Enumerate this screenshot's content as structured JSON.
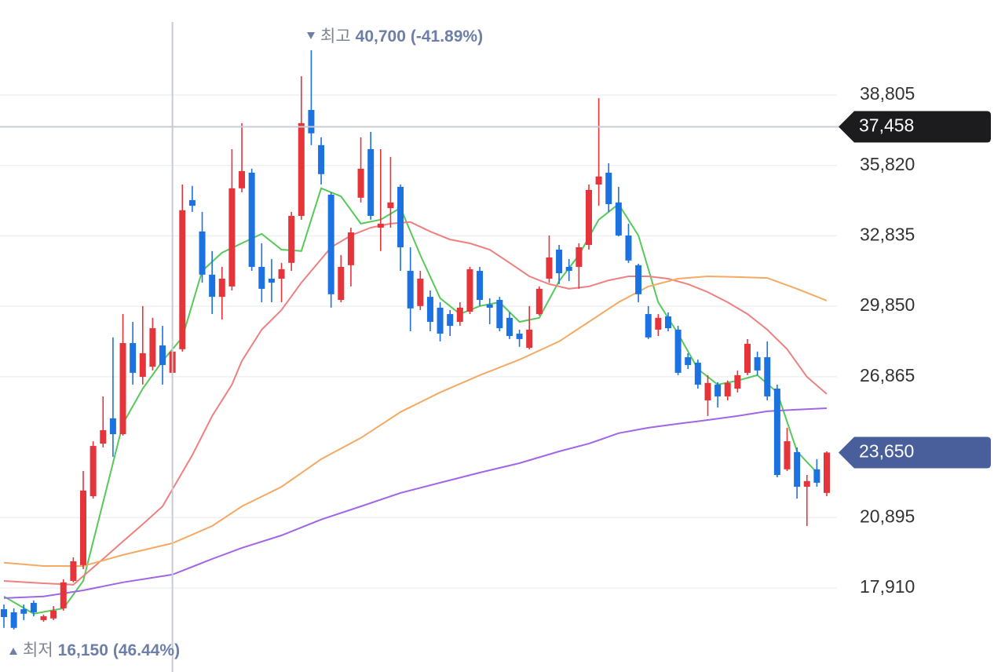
{
  "chart_data": {
    "type": "candlestick",
    "up_color": "#e5343a",
    "down_color": "#1b72e0",
    "ylim": [
      14350,
      42830
    ],
    "yticks": [
      {
        "value": 17910,
        "label": "17,910"
      },
      {
        "value": 20895,
        "label": "20,895"
      },
      {
        "value": 26865,
        "label": "26,865"
      },
      {
        "value": 29850,
        "label": "29,850"
      },
      {
        "value": 32835,
        "label": "32,835"
      },
      {
        "value": 35820,
        "label": "35,820"
      },
      {
        "value": 38805,
        "label": "38,805"
      }
    ],
    "grid": true,
    "ohlc": [
      [
        17010,
        17210,
        16220,
        16680
      ],
      [
        16880,
        17050,
        16150,
        16220
      ],
      [
        17010,
        17210,
        16550,
        16820
      ],
      [
        17280,
        17380,
        16710,
        16880
      ],
      [
        16550,
        16780,
        16480,
        16710
      ],
      [
        16620,
        17140,
        16550,
        16950
      ],
      [
        17050,
        18280,
        16950,
        18150
      ],
      [
        18210,
        19210,
        18150,
        19040
      ],
      [
        18880,
        22870,
        18710,
        22040
      ],
      [
        21800,
        24130,
        21700,
        23930
      ],
      [
        24030,
        26030,
        23870,
        24600
      ],
      [
        25100,
        28530,
        23470,
        24430
      ],
      [
        24430,
        29520,
        24370,
        28290
      ],
      [
        28290,
        29190,
        26530,
        27030
      ],
      [
        26860,
        29860,
        26530,
        27860
      ],
      [
        27290,
        29360,
        27130,
        28920
      ],
      [
        28190,
        29020,
        26530,
        27360
      ],
      [
        27030,
        28190,
        26930,
        27930
      ],
      [
        28030,
        35010,
        27930,
        33920
      ],
      [
        34350,
        34950,
        33850,
        34110
      ],
      [
        33020,
        33850,
        30850,
        31190
      ],
      [
        31190,
        32190,
        29520,
        30250
      ],
      [
        30250,
        31520,
        29290,
        31020
      ],
      [
        30690,
        36510,
        30520,
        34850
      ],
      [
        34850,
        37610,
        34680,
        35580
      ],
      [
        35510,
        35680,
        31350,
        31520
      ],
      [
        31520,
        32520,
        30020,
        30590
      ],
      [
        31020,
        31850,
        30020,
        30850
      ],
      [
        31020,
        31690,
        30020,
        31420
      ],
      [
        31690,
        33850,
        31350,
        33680
      ],
      [
        33680,
        39600,
        33520,
        37610
      ],
      [
        38170,
        40700,
        36680,
        37180
      ],
      [
        36680,
        37010,
        35010,
        35450
      ],
      [
        34580,
        34680,
        29790,
        30360
      ],
      [
        30120,
        32020,
        30020,
        31520
      ],
      [
        31590,
        33180,
        30690,
        32980
      ],
      [
        34450,
        37010,
        34250,
        35680
      ],
      [
        36510,
        37240,
        33520,
        33680
      ],
      [
        33180,
        36510,
        32190,
        33350
      ],
      [
        34010,
        36180,
        33180,
        34250
      ],
      [
        34910,
        35010,
        31350,
        32350
      ],
      [
        31350,
        32350,
        28790,
        29760
      ],
      [
        29860,
        31350,
        29690,
        31020
      ],
      [
        30250,
        30520,
        28790,
        29190
      ],
      [
        29790,
        30020,
        28360,
        28690
      ],
      [
        29520,
        29690,
        28590,
        29020
      ],
      [
        29190,
        30020,
        29020,
        29790
      ],
      [
        29620,
        31520,
        29520,
        31420
      ],
      [
        31350,
        31520,
        29860,
        30120
      ],
      [
        29920,
        30190,
        29090,
        29790
      ],
      [
        30120,
        30250,
        28790,
        28920
      ],
      [
        29360,
        29590,
        28460,
        28590
      ],
      [
        28690,
        28860,
        28130,
        28460
      ],
      [
        28090,
        29860,
        28030,
        28860
      ],
      [
        29520,
        30690,
        29460,
        30590
      ],
      [
        31020,
        32850,
        30850,
        31920
      ],
      [
        32250,
        32450,
        30790,
        31250
      ],
      [
        31520,
        31850,
        30920,
        31350
      ],
      [
        31520,
        32520,
        30590,
        32350
      ],
      [
        32450,
        35010,
        32250,
        34780
      ],
      [
        35010,
        38670,
        34110,
        35350
      ],
      [
        35510,
        35910,
        33850,
        34180
      ],
      [
        34250,
        34910,
        32810,
        32850
      ],
      [
        32850,
        33350,
        31690,
        31790
      ],
      [
        31590,
        31650,
        30020,
        30360
      ],
      [
        29520,
        29860,
        28460,
        28530
      ],
      [
        28860,
        29520,
        28590,
        29360
      ],
      [
        29420,
        29590,
        28790,
        28920
      ],
      [
        28860,
        29020,
        26930,
        27030
      ],
      [
        27690,
        27860,
        27190,
        27360
      ],
      [
        27460,
        27590,
        26360,
        26530
      ],
      [
        25860,
        26930,
        25200,
        26600
      ],
      [
        26530,
        26630,
        25560,
        26030
      ],
      [
        26030,
        26700,
        25860,
        26600
      ],
      [
        26360,
        27130,
        26200,
        26930
      ],
      [
        27030,
        28460,
        26930,
        28260
      ],
      [
        27690,
        27930,
        26930,
        27130
      ],
      [
        27690,
        28360,
        25860,
        26030
      ],
      [
        26360,
        26530,
        22600,
        22700
      ],
      [
        22940,
        24700,
        22870,
        24130
      ],
      [
        23670,
        23870,
        21700,
        22200
      ],
      [
        22200,
        22700,
        20540,
        22440
      ],
      [
        22940,
        23370,
        22200,
        22370
      ],
      [
        21940,
        23700,
        21800,
        23650
      ]
    ],
    "moving_averages": [
      {
        "color": "#55c95a",
        "x": [
          0,
          3,
          6,
          8,
          10,
          12,
          14,
          16,
          18,
          20,
          22,
          24,
          26,
          28,
          30,
          32,
          34,
          36,
          38,
          40,
          42,
          44,
          46,
          48,
          50,
          52,
          54,
          56,
          58,
          60,
          62,
          64,
          66,
          68,
          70,
          72,
          74,
          76,
          78,
          80,
          82
        ],
        "values": [
          17550,
          16820,
          17050,
          18210,
          21540,
          24870,
          26360,
          27530,
          28530,
          31350,
          32120,
          32520,
          32920,
          32250,
          32190,
          34850,
          34510,
          33350,
          33520,
          34020,
          32020,
          30190,
          29520,
          29860,
          30020,
          29190,
          29360,
          30920,
          32020,
          33520,
          34180,
          32850,
          30020,
          28690,
          27190,
          26530,
          26700,
          26930,
          26200,
          23700,
          22800
        ]
      },
      {
        "color": "#ee8080",
        "x": [
          0,
          4,
          7,
          10,
          12,
          14,
          16,
          19,
          21,
          23,
          24,
          26,
          28,
          30,
          33,
          35,
          37,
          39,
          41,
          43,
          45,
          47,
          49,
          51,
          53,
          55,
          57,
          59,
          61,
          63,
          65,
          67,
          69,
          71,
          73,
          75,
          77,
          79,
          81,
          83
        ],
        "values": [
          18210,
          18110,
          18050,
          19140,
          19880,
          20610,
          21370,
          23540,
          25200,
          26530,
          27530,
          28860,
          29690,
          30850,
          32350,
          32850,
          33180,
          33350,
          33420,
          33020,
          32680,
          32520,
          32250,
          31690,
          31120,
          30790,
          30590,
          30690,
          30950,
          31120,
          31120,
          31020,
          30790,
          30450,
          30020,
          29520,
          28860,
          28030,
          26860,
          26130
        ]
      },
      {
        "color": "#f5a964",
        "x": [
          0,
          4,
          8,
          12,
          17,
          21,
          24,
          28,
          32,
          36,
          40,
          44,
          48,
          52,
          56,
          59,
          62,
          65,
          68,
          71,
          74,
          77,
          80,
          83
        ],
        "values": [
          18980,
          18840,
          18840,
          19310,
          19810,
          20540,
          21370,
          22200,
          23370,
          24270,
          25370,
          26200,
          26930,
          27590,
          28360,
          29190,
          30020,
          30690,
          31020,
          31120,
          31090,
          31050,
          30590,
          30090
        ]
      },
      {
        "color": "#a066e6",
        "x": [
          0,
          4,
          8,
          12,
          17,
          21,
          24,
          28,
          32,
          36,
          40,
          44,
          48,
          52,
          56,
          59,
          62,
          65,
          68,
          71,
          74,
          77,
          80,
          83
        ],
        "values": [
          17480,
          17550,
          17810,
          18150,
          18480,
          19140,
          19610,
          20140,
          20810,
          21370,
          21940,
          22370,
          22800,
          23200,
          23700,
          24030,
          24470,
          24700,
          24870,
          25030,
          25200,
          25400,
          25470,
          25530
        ]
      }
    ],
    "crosshair": {
      "index": 17,
      "value": 37458,
      "value_label": "37,458"
    },
    "last_price": {
      "value": 23650,
      "label": "23,650"
    },
    "high_marker": {
      "label": "최고",
      "value": 40700,
      "value_label": "40,700",
      "change": -41.89,
      "change_label": "(-41.89%)"
    },
    "low_marker": {
      "label": "최저",
      "value": 16150,
      "value_label": "16,150",
      "change": 46.44,
      "change_label": "(46.44%)"
    }
  }
}
